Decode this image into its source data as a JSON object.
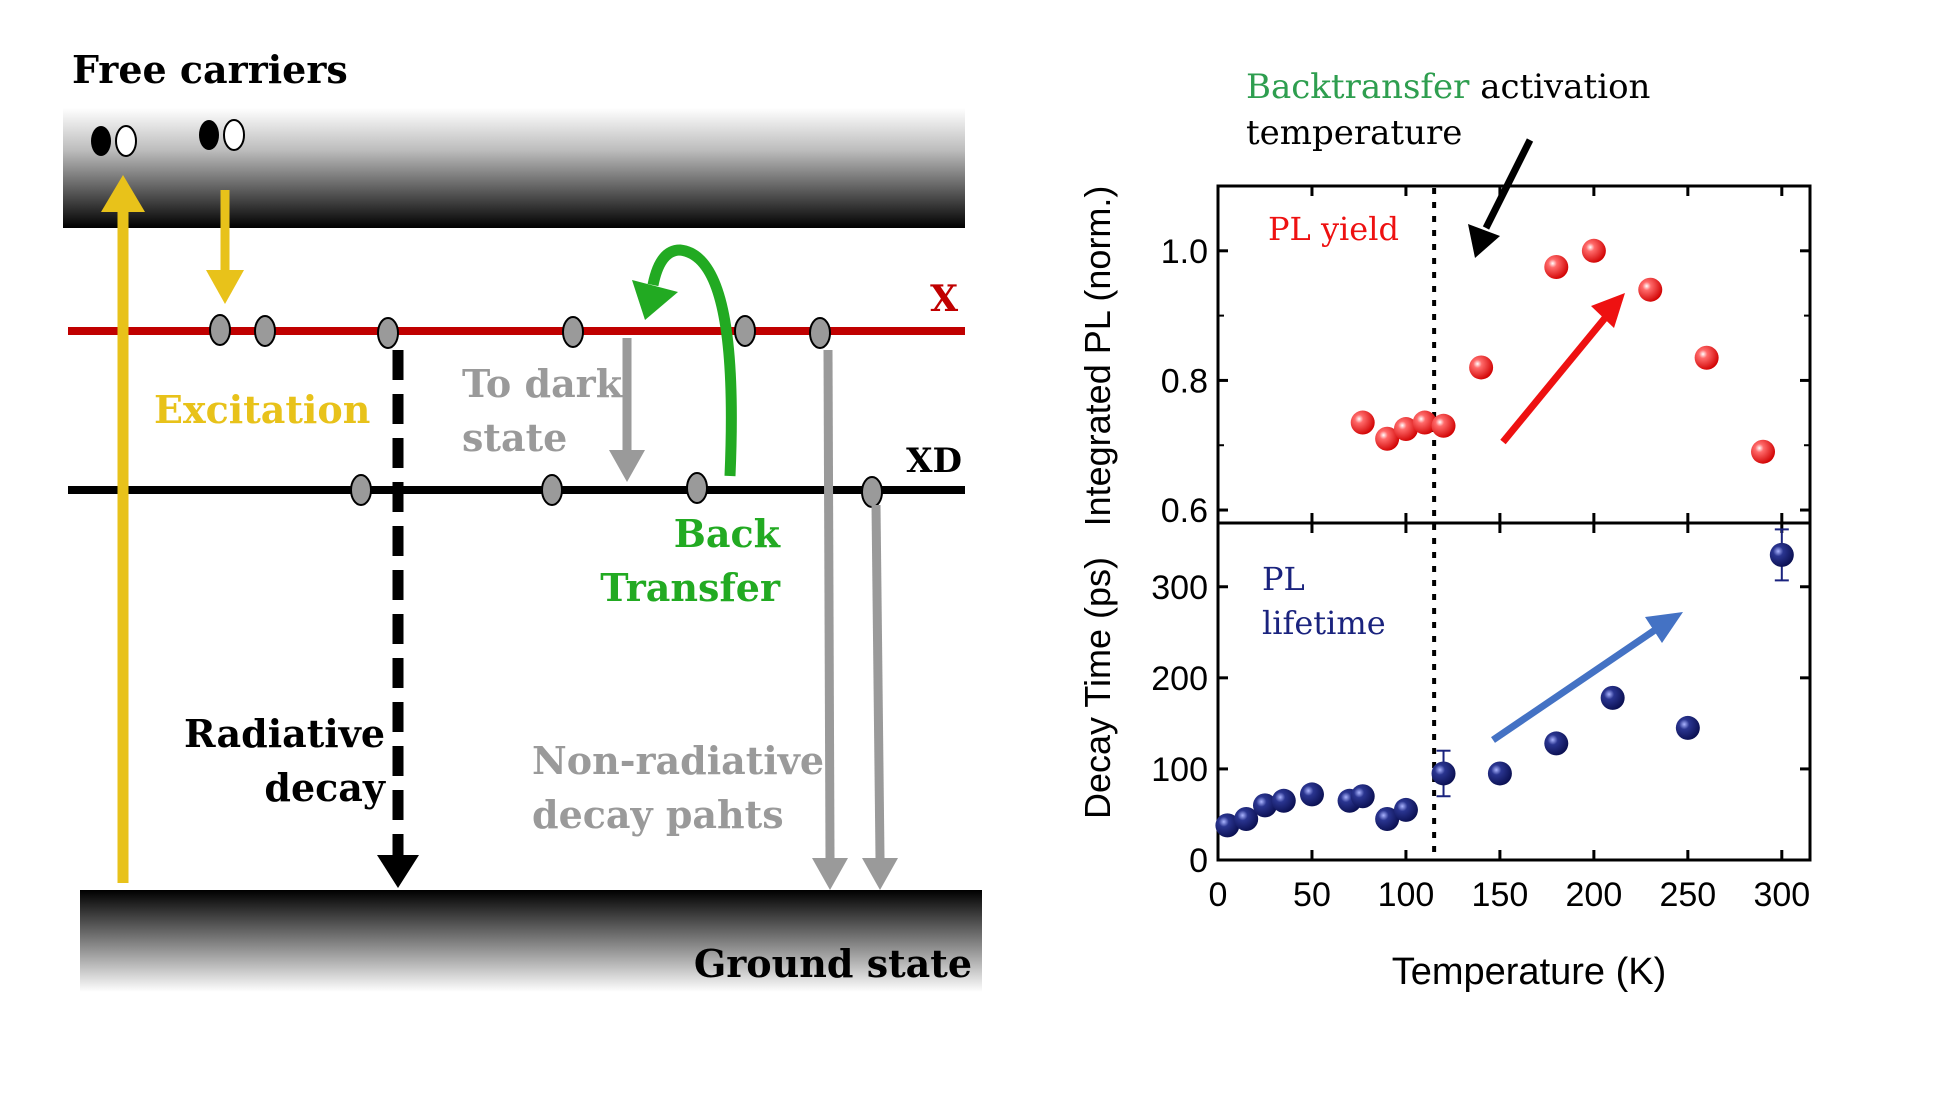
{
  "diagram": {
    "title": "Free carriers",
    "ground_label": "Ground state",
    "level_x_label": "X",
    "level_xd_label": "XD",
    "excitation_label": "Excitation",
    "to_dark_label_1": "To dark",
    "to_dark_label_2": "state",
    "back_transfer_label_1": "Back",
    "back_transfer_label_2": "Transfer",
    "radiative_label_1": "Radiative",
    "radiative_label_2": "decay",
    "nonradiative_label_1": "Non-radiative",
    "nonradiative_label_2": "decay pahts",
    "colors": {
      "excitation": "#e8c21a",
      "level_x": "#c00000",
      "back_transfer": "#22aa22",
      "gray": "#9a9a9a",
      "black": "#000000"
    }
  },
  "annotation": {
    "backtransfer_word": "Backtransfer",
    "activation_word": " activation",
    "temperature_word": "temperature",
    "backtransfer_color": "#2e9e4f"
  },
  "chart_data": [
    {
      "type": "scatter",
      "panel": "top",
      "ylabel": "Integrated PL (norm.)",
      "legend": "PL yield",
      "legend_color": "#ee1111",
      "ylim": [
        0.58,
        1.1
      ],
      "yticks": [
        "0.6",
        "0.8",
        "1.0"
      ],
      "xlim": [
        0,
        315
      ],
      "marker_color": "#ee1111",
      "series": [
        {
          "x": [
            77,
            90,
            100,
            110,
            120,
            140,
            180,
            200,
            230,
            260,
            290
          ],
          "y": [
            0.735,
            0.71,
            0.725,
            0.735,
            0.73,
            0.82,
            0.975,
            1.0,
            0.94,
            0.835,
            0.69
          ]
        }
      ],
      "trend_arrow_color": "#ee1111",
      "vline_x": 115
    },
    {
      "type": "scatter",
      "panel": "bottom",
      "ylabel": "Decay Time (ps)",
      "legend": "PL\nlifetime",
      "legend_line1": "PL",
      "legend_line2": "lifetime",
      "legend_color": "#1a237e",
      "xlabel": "Temperature (K)",
      "xlim": [
        0,
        315
      ],
      "ylim": [
        0,
        370
      ],
      "xticks": [
        "0",
        "50",
        "100",
        "150",
        "200",
        "250",
        "300"
      ],
      "yticks": [
        "0",
        "100",
        "200",
        "300"
      ],
      "marker_color": "#1a237e",
      "series": [
        {
          "x": [
            5,
            15,
            25,
            35,
            50,
            70,
            77,
            90,
            100,
            120,
            150,
            180,
            210,
            250,
            300
          ],
          "y": [
            38,
            45,
            60,
            65,
            72,
            65,
            70,
            45,
            55,
            95,
            95,
            128,
            178,
            145,
            335
          ],
          "err": [
            5,
            5,
            5,
            5,
            5,
            5,
            5,
            10,
            5,
            25,
            5,
            5,
            5,
            5,
            28
          ]
        }
      ],
      "trend_arrow_color": "#4472c4",
      "vline_x": 115
    }
  ]
}
